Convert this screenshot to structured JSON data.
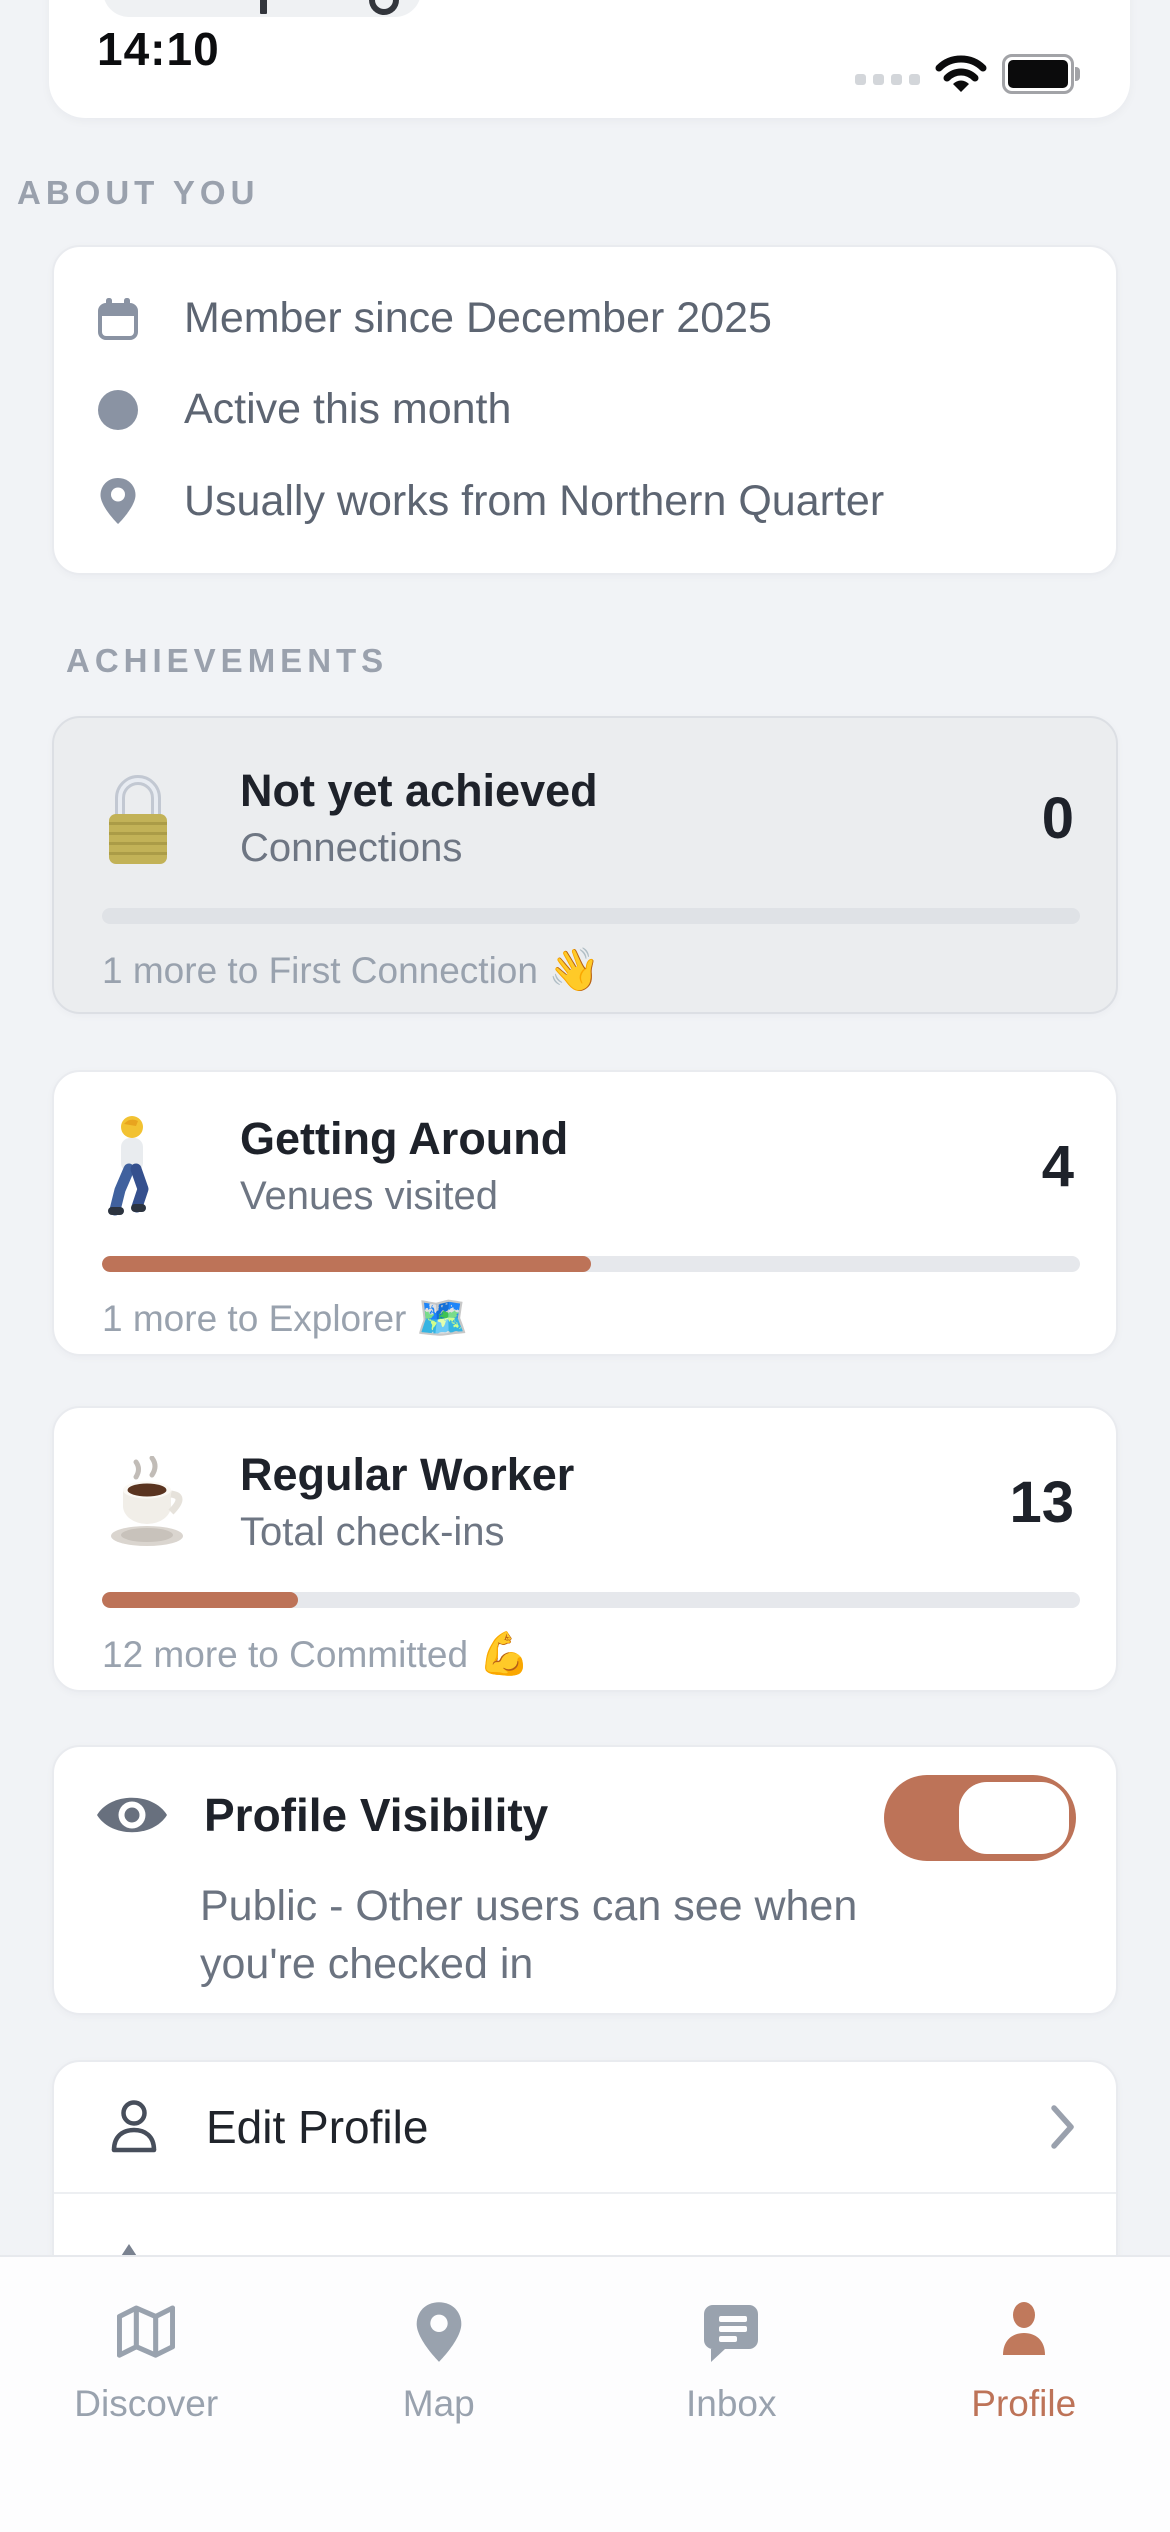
{
  "status_bar": {
    "time": "14:10"
  },
  "colors": {
    "accent": "#bd7358",
    "page_bg": "#f1f3f6",
    "card_bg": "#ffffff",
    "locked_card_bg": "#ebedef",
    "text_primary": "#1e222a",
    "text_secondary": "#6e7683",
    "text_muted": "#99a2ae"
  },
  "about": {
    "header": "ABOUT YOU",
    "items": [
      {
        "icon": "calendar-icon",
        "text": "Member since December 2025"
      },
      {
        "icon": "dot-icon",
        "text": "Active this month"
      },
      {
        "icon": "pin-icon",
        "text": "Usually works from Northern Quarter"
      }
    ]
  },
  "achievements": {
    "header": "ACHIEVEMENTS",
    "cards": [
      {
        "badge_icon": "lock-emoji",
        "title": "Not yet achieved",
        "subtitle": "Connections",
        "value": "0",
        "progress_pct": 0,
        "footnote": "1 more to First Connection",
        "footnote_icon": "👋",
        "locked": true
      },
      {
        "badge_icon": "walking-person-emoji",
        "title": "Getting Around",
        "subtitle": "Venues visited",
        "value": "4",
        "progress_pct": 50,
        "footnote": "1 more to Explorer",
        "footnote_icon": "🗺️",
        "locked": false
      },
      {
        "badge_icon": "coffee-emoji",
        "title": "Regular Worker",
        "subtitle": "Total check-ins",
        "value": "13",
        "progress_pct": 20,
        "footnote": "12 more to Committed",
        "footnote_icon": "💪",
        "locked": false
      }
    ]
  },
  "profile_visibility": {
    "icon": "eye-icon",
    "title": "Profile Visibility",
    "description": "Public - Other users can see when you're checked in",
    "toggle_state": "on"
  },
  "menu": {
    "items": [
      {
        "icon": "person-icon",
        "label": "Edit Profile"
      }
    ]
  },
  "tab_bar": {
    "tabs": [
      {
        "icon": "map-folded-icon",
        "label": "Discover",
        "active": false
      },
      {
        "icon": "location-pin-icon",
        "label": "Map",
        "active": false
      },
      {
        "icon": "chat-bubble-icon",
        "label": "Inbox",
        "active": false
      },
      {
        "icon": "person-icon",
        "label": "Profile",
        "active": true
      }
    ]
  }
}
